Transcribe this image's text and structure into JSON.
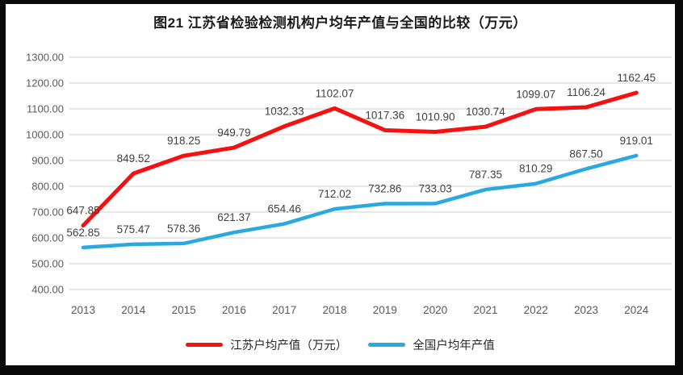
{
  "chart_data": {
    "type": "line",
    "title": "图21  江苏省检验检测机构户均年产值与全国的比较（万元）",
    "categories": [
      "2013",
      "2014",
      "2015",
      "2016",
      "2017",
      "2018",
      "2019",
      "2020",
      "2021",
      "2022",
      "2023",
      "2024"
    ],
    "series": [
      {
        "name": "江苏户均产值（万元）",
        "color": "#F51111",
        "values": [
          647.85,
          849.52,
          918.25,
          949.79,
          1032.33,
          1102.07,
          1017.36,
          1010.9,
          1030.74,
          1099.07,
          1106.24,
          1162.45
        ]
      },
      {
        "name": "全国户均年产值",
        "color": "#29A9E0",
        "values": [
          562.85,
          575.47,
          578.36,
          621.37,
          654.46,
          712.02,
          732.86,
          733.03,
          787.35,
          810.29,
          867.5,
          919.01
        ]
      }
    ],
    "ylim": [
      400,
      1300
    ],
    "ytick_step": 100,
    "ytick_labels": [
      "400.00",
      "500.00",
      "600.00",
      "700.00",
      "800.00",
      "900.00",
      "1000.00",
      "1100.00",
      "1200.00",
      "1300.00"
    ],
    "grid": true,
    "data_labels": true,
    "legend_position": "bottom"
  },
  "style": {
    "grid_color": "#D9D9D9",
    "axis_label_color": "#595959",
    "data_label_color": "#404040"
  }
}
